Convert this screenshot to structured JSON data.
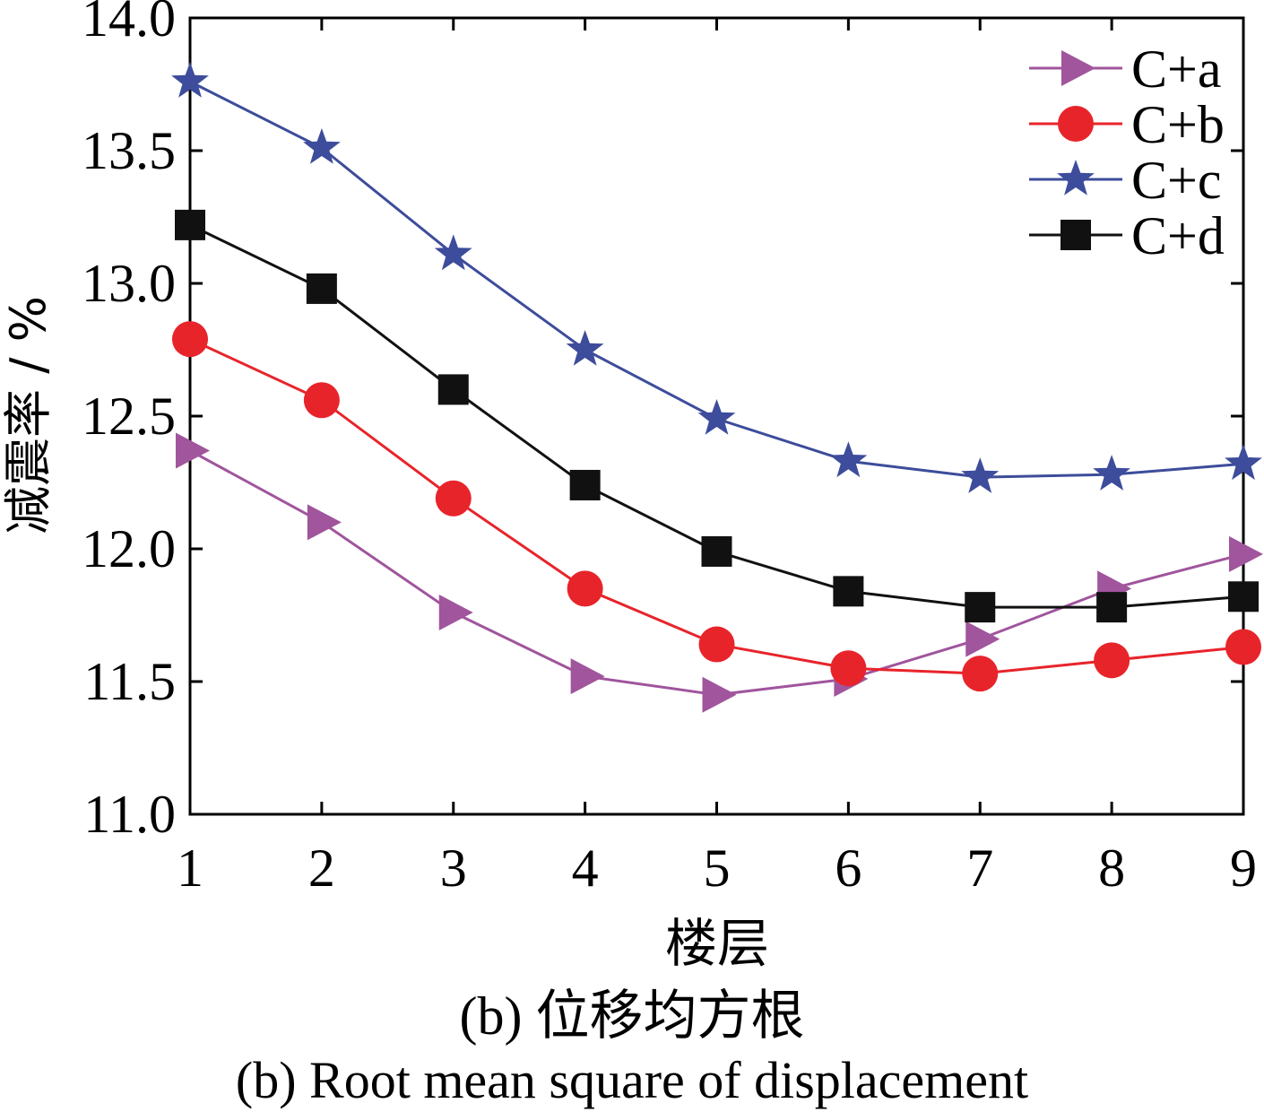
{
  "chart_data": {
    "type": "line",
    "title": "",
    "xlabel": "楼层",
    "ylabel": "减震率 / %",
    "x": [
      1,
      2,
      3,
      4,
      5,
      6,
      7,
      8,
      9
    ],
    "xlim": [
      1,
      9
    ],
    "ylim": [
      11.0,
      14.0
    ],
    "x_ticks": [
      "1",
      "2",
      "3",
      "4",
      "5",
      "6",
      "7",
      "8",
      "9"
    ],
    "y_ticks": [
      "11.0",
      "11.5",
      "12.0",
      "12.5",
      "13.0",
      "13.5",
      "14.0"
    ],
    "grid": false,
    "legend_position": "top-right",
    "series": [
      {
        "name": "C+a",
        "marker": "triangle-right",
        "color": "#a0559c",
        "values": [
          12.37,
          12.1,
          11.76,
          11.52,
          11.45,
          11.51,
          11.66,
          11.85,
          11.98
        ]
      },
      {
        "name": "C+b",
        "marker": "circle",
        "color": "#e8242b",
        "values": [
          12.79,
          12.56,
          12.19,
          11.85,
          11.64,
          11.55,
          11.53,
          11.58,
          11.63
        ]
      },
      {
        "name": "C+c",
        "marker": "star",
        "color": "#3d4c9b",
        "values": [
          13.76,
          13.51,
          13.11,
          12.75,
          12.49,
          12.33,
          12.27,
          12.28,
          12.32
        ]
      },
      {
        "name": "C+d",
        "marker": "square",
        "color": "#111111",
        "values": [
          13.22,
          12.98,
          12.6,
          12.24,
          11.99,
          11.84,
          11.78,
          11.78,
          11.82
        ]
      }
    ]
  },
  "captions": {
    "zh": "(b) 位移均方根",
    "en": "(b) Root mean square of displacement"
  }
}
